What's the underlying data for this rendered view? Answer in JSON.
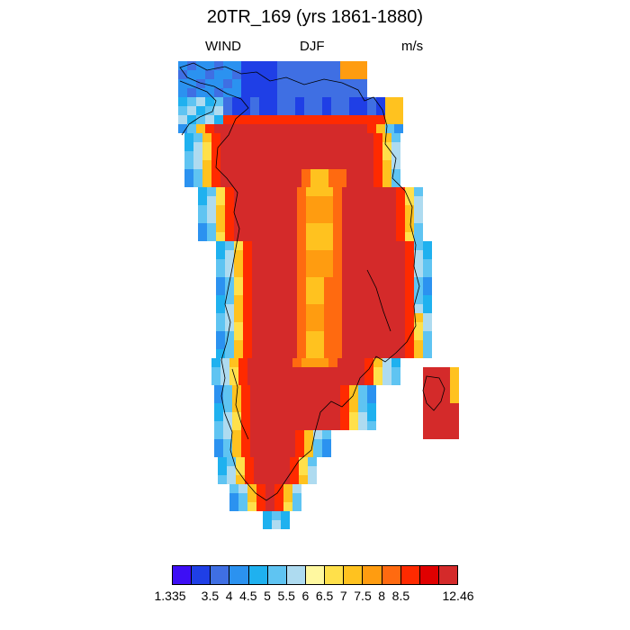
{
  "title": "20TR_169 (yrs 1861-1880)",
  "subtitle": {
    "left": "WIND",
    "center": "DJF",
    "right": "m/s"
  },
  "colorbar": {
    "colors": [
      "#3d0ef5",
      "#1f3fe6",
      "#3f6fe3",
      "#2b92f0",
      "#1fb1ef",
      "#5fc4f2",
      "#aedbf0",
      "#fff8a0",
      "#ffe04a",
      "#ffc21f",
      "#ff9c10",
      "#ff6a10",
      "#ff2a00",
      "#e00000",
      "#d42a2a"
    ],
    "labels": [
      "1.335",
      "3.5",
      "4",
      "4.5",
      "5",
      "5.5",
      "6",
      "6.5",
      "7",
      "7.5",
      "8",
      "8.5",
      "12.46"
    ]
  }
}
